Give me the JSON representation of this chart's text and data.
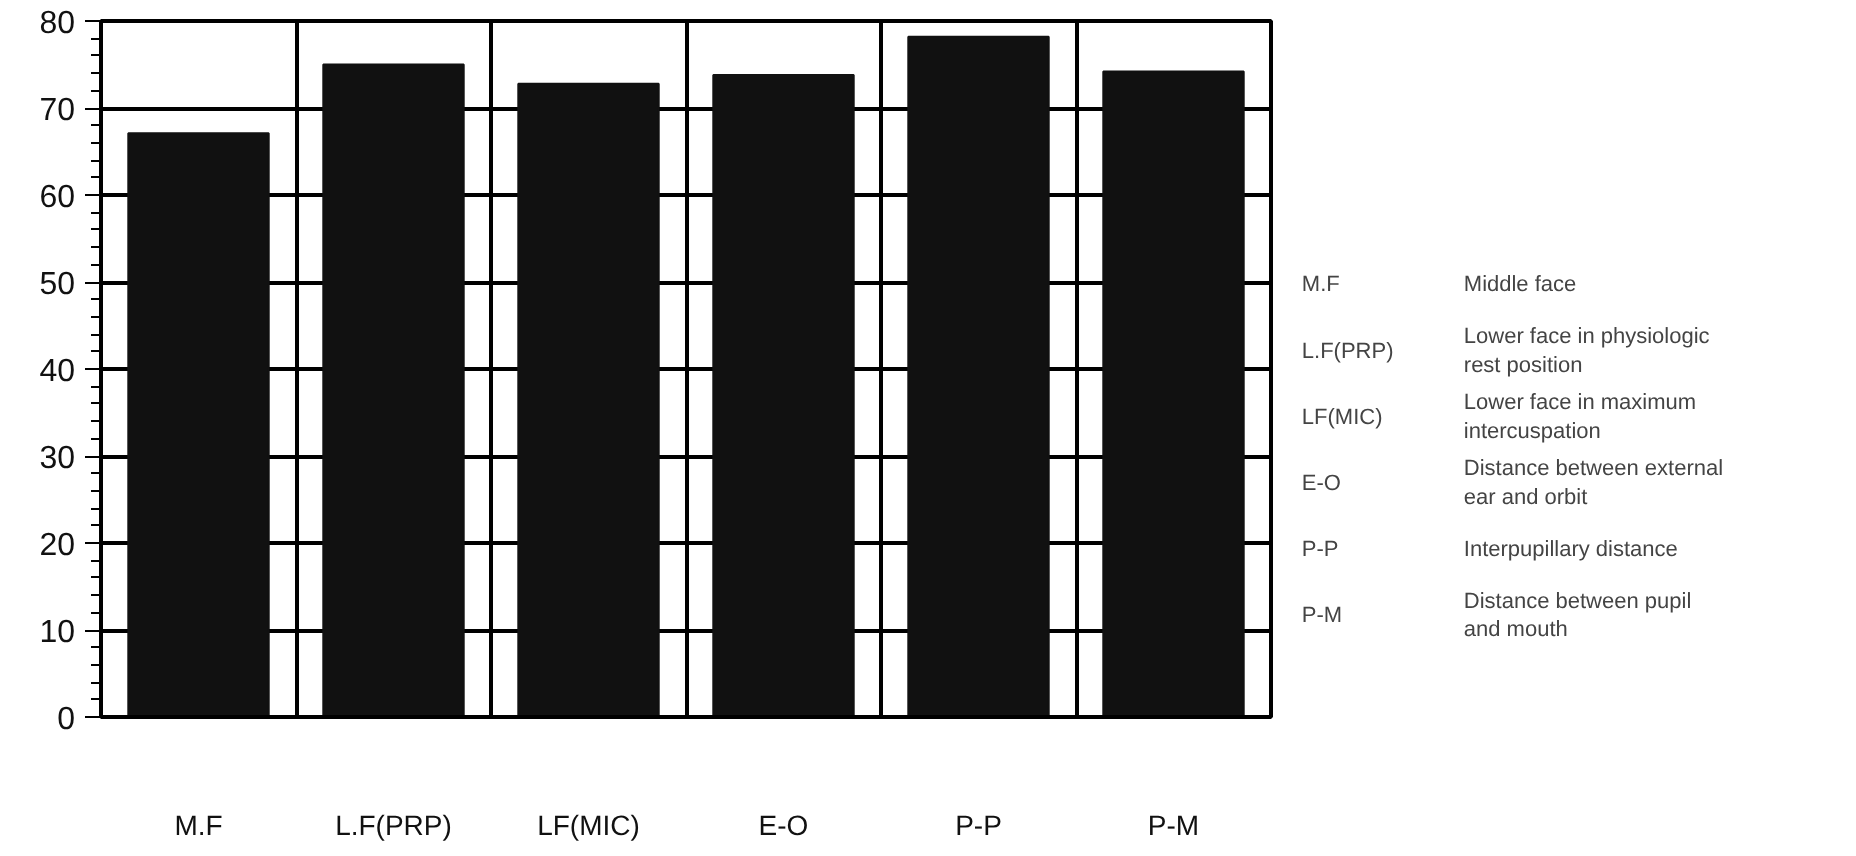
{
  "chart_data": {
    "type": "bar",
    "categories": [
      "M.F",
      "L.F(PRP)",
      "LF(MIC)",
      "E-O",
      "P-P",
      "P-M"
    ],
    "values": [
      67.1,
      75.0,
      72.8,
      73.8,
      78.2,
      74.2
    ],
    "color": "#111111",
    "ylim": [
      0,
      80
    ],
    "yticks": [
      0,
      10,
      20,
      30,
      40,
      50,
      60,
      70,
      80
    ],
    "grid": true,
    "annotations": [
      "M.F",
      "Middle face",
      "L.F(PRP)",
      "Lower face in physiologic rest position",
      "LF(MIC)",
      "Lower face in maximum intercuspation",
      "E-O",
      "Distance between external ear and orbit",
      "P-P",
      "Interpupillary distance",
      "P-M",
      "Distance between pupil and mouth"
    ]
  }
}
